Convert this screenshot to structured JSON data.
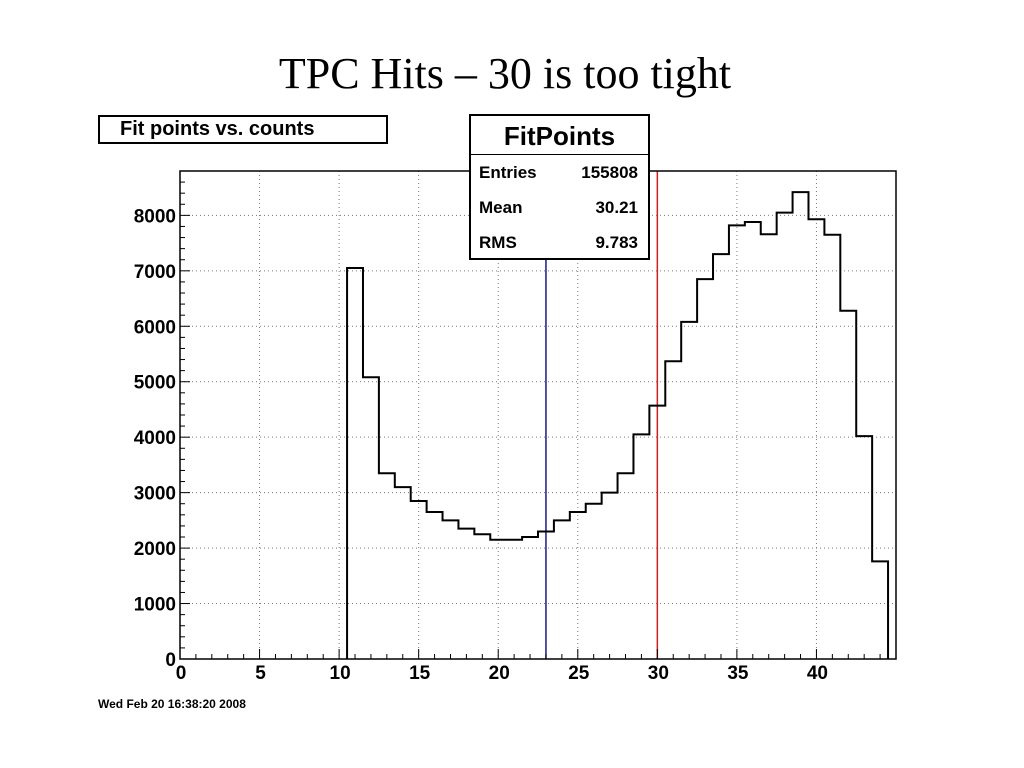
{
  "slide": {
    "title": "TPC Hits – 30 is too tight"
  },
  "footer": {
    "date": "Wed Feb 20 16:38:20 2008"
  },
  "stats": {
    "name": "FitPoints",
    "rows": [
      {
        "label": "Entries",
        "value": "155808"
      },
      {
        "label": "Mean",
        "value": "30.21"
      },
      {
        "label": "RMS",
        "value": "9.783"
      }
    ]
  },
  "chart_data": {
    "type": "bar",
    "title": "Fit points vs. counts",
    "xlabel": "",
    "ylabel": "",
    "xlim": [
      0,
      45
    ],
    "ylim": [
      0,
      8800
    ],
    "grid": true,
    "x_ticks": [
      0,
      5,
      10,
      15,
      20,
      25,
      30,
      35,
      40
    ],
    "y_ticks": [
      0,
      1000,
      2000,
      3000,
      4000,
      5000,
      6000,
      7000,
      8000
    ],
    "bin_width": 1,
    "bin_edges_start": 10.5,
    "bin_values": [
      7050,
      5080,
      3350,
      3100,
      2850,
      2650,
      2500,
      2350,
      2250,
      2150,
      2150,
      2200,
      2300,
      2500,
      2650,
      2800,
      3000,
      3350,
      4050,
      4570,
      5370,
      6080,
      6850,
      7300,
      7820,
      7880,
      7660,
      8050,
      8420,
      7930,
      7650,
      6280,
      4020,
      1760
    ],
    "reference_lines": [
      {
        "x": 23,
        "color": "#1a1a8c"
      },
      {
        "x": 30,
        "color": "#cc2222"
      }
    ],
    "colors": {
      "histogram": "#000000",
      "grid": "#7a7a7a"
    }
  }
}
